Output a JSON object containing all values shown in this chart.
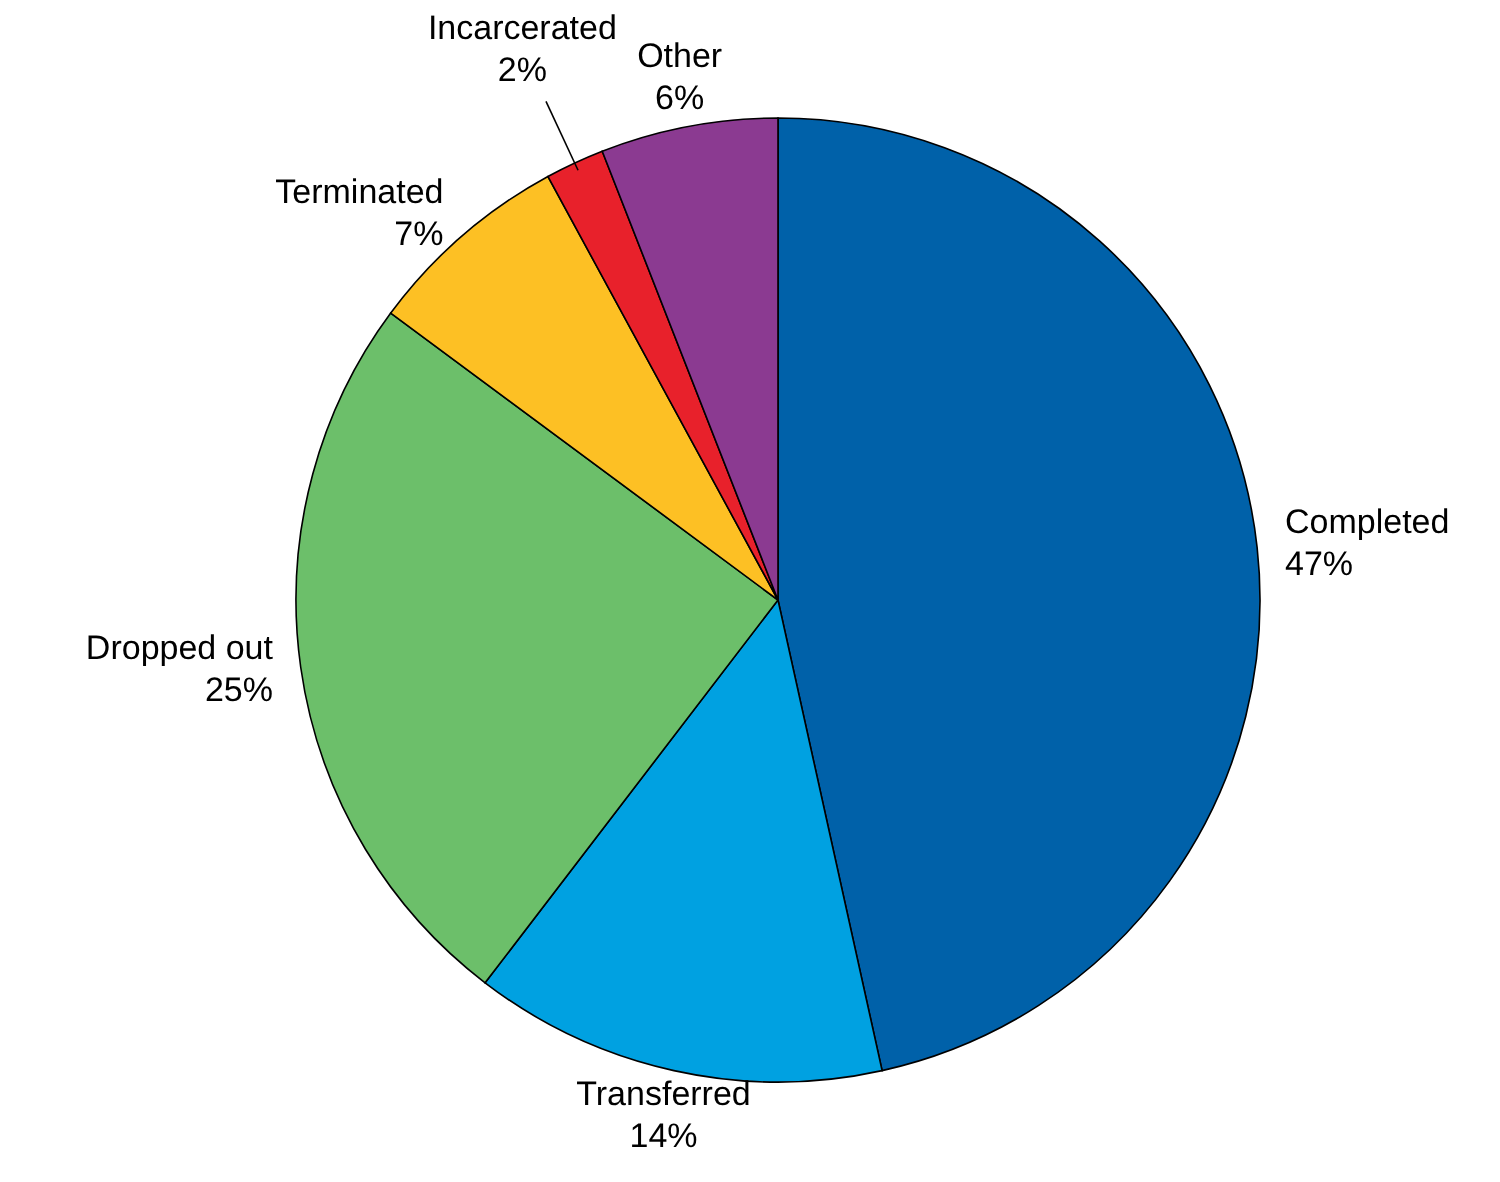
{
  "chart_data": {
    "type": "pie",
    "categories": [
      "Completed",
      "Transferred",
      "Dropped out",
      "Terminated",
      "Incarcerated",
      "Other"
    ],
    "values": [
      47,
      14,
      25,
      7,
      2,
      6
    ],
    "value_labels": [
      "47%",
      "14%",
      "25%",
      "7%",
      "2%",
      "6%"
    ],
    "colors": [
      "#0061a9",
      "#00a1e1",
      "#6cbf6a",
      "#fdc024",
      "#e8212b",
      "#8b3a91"
    ]
  }
}
